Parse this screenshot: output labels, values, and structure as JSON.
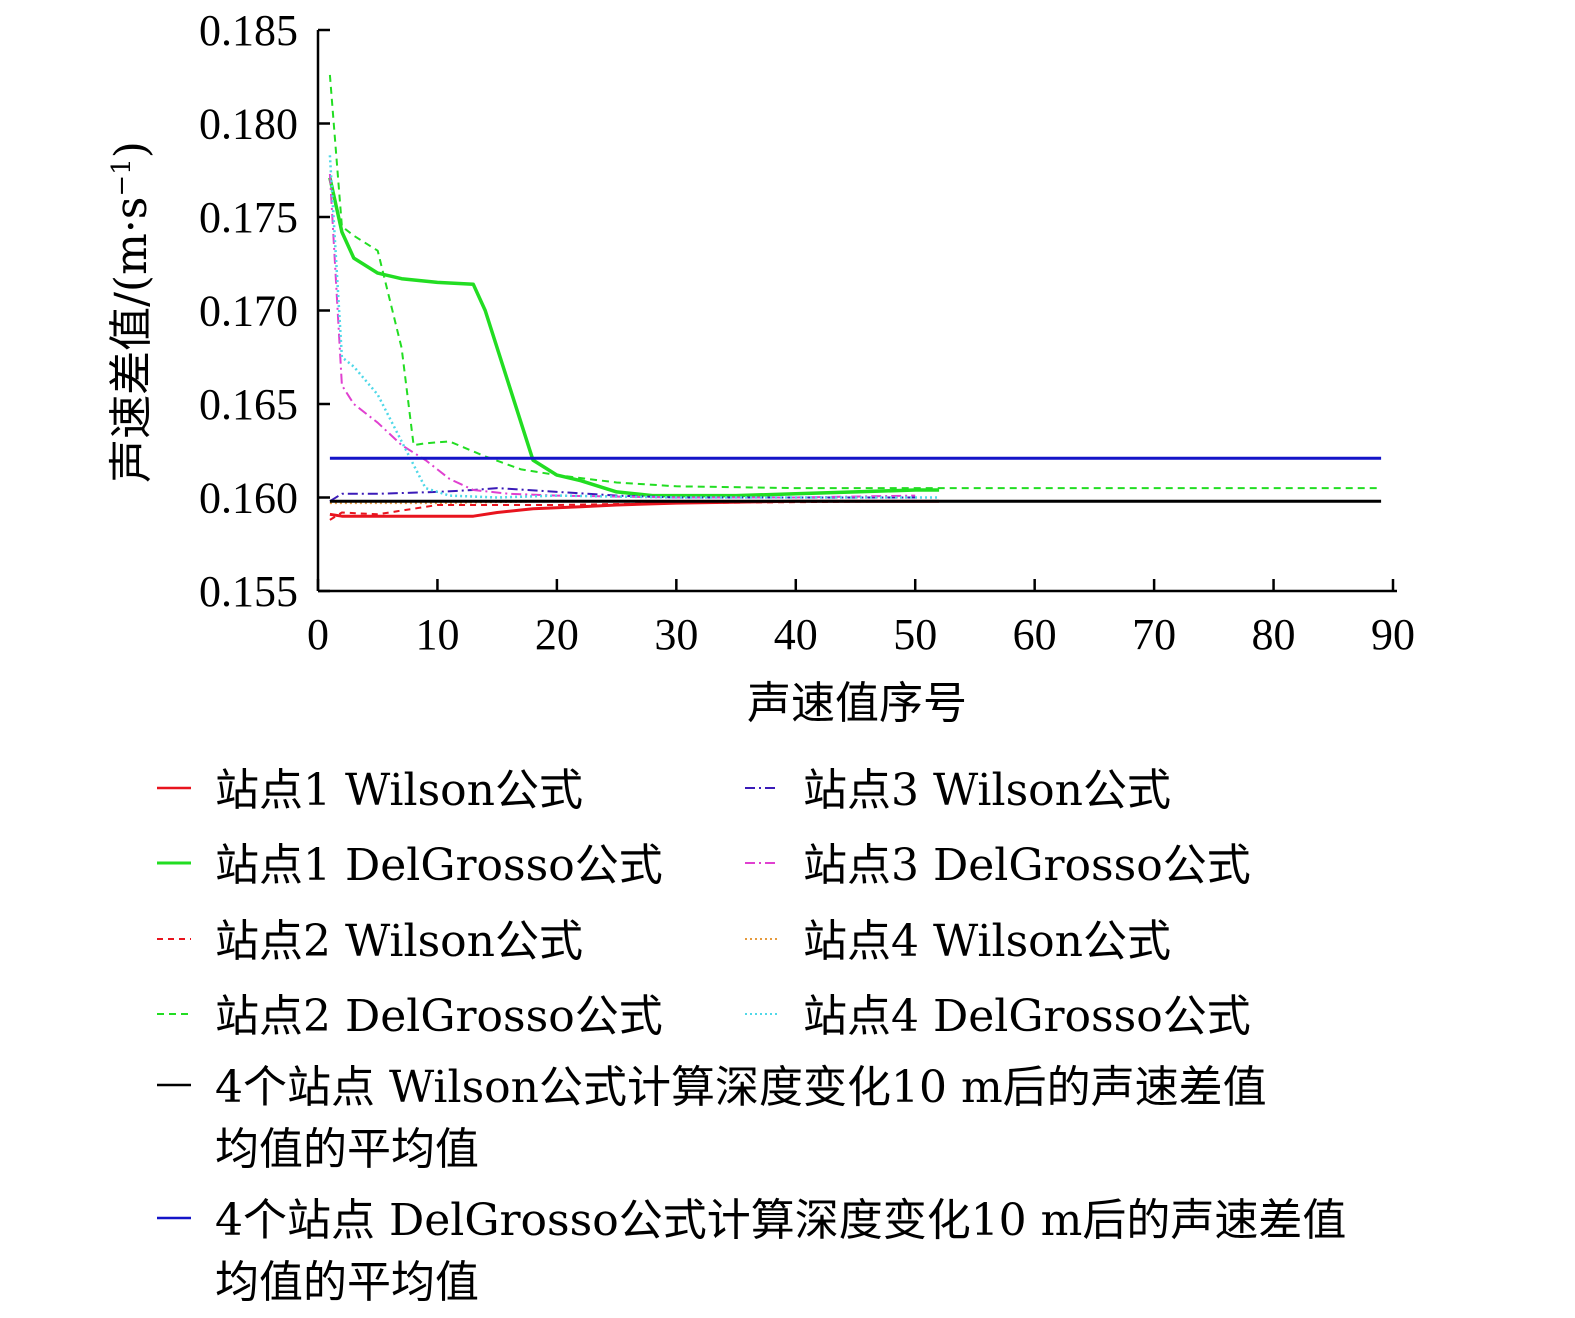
{
  "chart_data": {
    "type": "line",
    "title": "",
    "xlabel": "声速值序号",
    "ylabel": "声速差值/(m·s",
    "ylabel_sup": "−1",
    "ylabel_close": ")",
    "xlim": [
      0,
      90
    ],
    "ylim": [
      0.155,
      0.185
    ],
    "x_ticks": [
      0,
      10,
      20,
      30,
      40,
      50,
      60,
      70,
      80,
      90
    ],
    "y_ticks": [
      0.155,
      0.16,
      0.165,
      0.17,
      0.175,
      0.18,
      0.185
    ],
    "x_tick_labels": [
      "0",
      "10",
      "20",
      "30",
      "40",
      "50",
      "60",
      "70",
      "80",
      "90"
    ],
    "y_tick_labels": [
      "0.155",
      "0.160",
      "0.165",
      "0.170",
      "0.175",
      "0.180",
      "0.185"
    ],
    "grid": false,
    "legend_position": "bottom",
    "series": [
      {
        "name": "站点1 Wilson公式",
        "color": "#e8141e",
        "dash": "solid",
        "width": 3,
        "points": [
          [
            1,
            0.1591
          ],
          [
            2,
            0.159
          ],
          [
            5,
            0.159
          ],
          [
            8,
            0.159
          ],
          [
            13,
            0.159
          ],
          [
            15,
            0.1592
          ],
          [
            18,
            0.1594
          ],
          [
            22,
            0.1595
          ],
          [
            25,
            0.1596
          ],
          [
            30,
            0.1597
          ],
          [
            40,
            0.1598
          ],
          [
            52,
            0.1598
          ]
        ]
      },
      {
        "name": "站点1 DelGrosso公式",
        "color": "#22dd22",
        "dash": "solid",
        "width": 3.5,
        "points": [
          [
            1,
            0.1771
          ],
          [
            2,
            0.1742
          ],
          [
            3,
            0.1728
          ],
          [
            5,
            0.172
          ],
          [
            7,
            0.1717
          ],
          [
            10,
            0.1715
          ],
          [
            13,
            0.1714
          ],
          [
            14,
            0.17
          ],
          [
            16,
            0.166
          ],
          [
            18,
            0.162
          ],
          [
            20,
            0.1612
          ],
          [
            22,
            0.1609
          ],
          [
            25,
            0.1603
          ],
          [
            28,
            0.1601
          ],
          [
            30,
            0.1601
          ],
          [
            35,
            0.1601
          ],
          [
            40,
            0.1602
          ],
          [
            45,
            0.1603
          ],
          [
            50,
            0.1604
          ],
          [
            52,
            0.1604
          ]
        ]
      },
      {
        "name": "站点2 Wilson公式",
        "color": "#e8141e",
        "dash": "6,5",
        "width": 2,
        "points": [
          [
            1,
            0.1588
          ],
          [
            2,
            0.1592
          ],
          [
            5,
            0.1591
          ],
          [
            8,
            0.1594
          ],
          [
            10,
            0.1596
          ],
          [
            15,
            0.1596
          ],
          [
            20,
            0.1596
          ],
          [
            30,
            0.1597
          ],
          [
            50,
            0.1598
          ],
          [
            89,
            0.1598
          ]
        ]
      },
      {
        "name": "站点2 DelGrosso公式",
        "color": "#22dd22",
        "dash": "7,5",
        "width": 2,
        "points": [
          [
            1,
            0.1826
          ],
          [
            2,
            0.1745
          ],
          [
            3,
            0.174
          ],
          [
            5,
            0.1732
          ],
          [
            7,
            0.168
          ],
          [
            8,
            0.1628
          ],
          [
            9,
            0.1629
          ],
          [
            11,
            0.163
          ],
          [
            14,
            0.1622
          ],
          [
            17,
            0.1615
          ],
          [
            20,
            0.1612
          ],
          [
            25,
            0.1608
          ],
          [
            30,
            0.1606
          ],
          [
            40,
            0.1605
          ],
          [
            60,
            0.1605
          ],
          [
            89,
            0.1605
          ]
        ]
      },
      {
        "name": "站点3 Wilson公式",
        "color": "#3a1ab8",
        "dash": "10,4,2,4",
        "width": 2,
        "points": [
          [
            1,
            0.1598
          ],
          [
            2,
            0.1602
          ],
          [
            5,
            0.1602
          ],
          [
            10,
            0.1603
          ],
          [
            13,
            0.1604
          ],
          [
            15,
            0.1605
          ],
          [
            20,
            0.1603
          ],
          [
            25,
            0.1601
          ],
          [
            30,
            0.16
          ],
          [
            40,
            0.16
          ],
          [
            50,
            0.16
          ]
        ]
      },
      {
        "name": "站点3 DelGrosso公式",
        "color": "#e040d0",
        "dash": "10,4,2,4",
        "width": 2,
        "points": [
          [
            1,
            0.1773
          ],
          [
            2,
            0.166
          ],
          [
            3,
            0.165
          ],
          [
            5,
            0.164
          ],
          [
            7,
            0.1628
          ],
          [
            9,
            0.162
          ],
          [
            11,
            0.161
          ],
          [
            13,
            0.1604
          ],
          [
            16,
            0.1602
          ],
          [
            20,
            0.1601
          ],
          [
            30,
            0.16
          ],
          [
            40,
            0.16
          ],
          [
            50,
            0.1601
          ]
        ]
      },
      {
        "name": "站点4 Wilson公式",
        "color": "#e69a3c",
        "dash": "2,3",
        "width": 2,
        "points": [
          [
            1,
            0.1597
          ],
          [
            5,
            0.1597
          ],
          [
            10,
            0.1597
          ],
          [
            20,
            0.1598
          ],
          [
            30,
            0.1598
          ],
          [
            40,
            0.1598
          ],
          [
            52,
            0.1598
          ]
        ]
      },
      {
        "name": "站点4 DelGrosso公式",
        "color": "#4fd8e8",
        "dash": "2,3",
        "width": 2.5,
        "points": [
          [
            1,
            0.1783
          ],
          [
            2,
            0.1675
          ],
          [
            3,
            0.167
          ],
          [
            5,
            0.1655
          ],
          [
            7,
            0.163
          ],
          [
            9,
            0.1605
          ],
          [
            11,
            0.1601
          ],
          [
            15,
            0.16
          ],
          [
            20,
            0.1601
          ],
          [
            30,
            0.16
          ],
          [
            40,
            0.16
          ],
          [
            52,
            0.16
          ]
        ]
      },
      {
        "name": "4个站点 Wilson公式计算深度变化10 m后的声速差值均值的平均值",
        "color": "#000000",
        "dash": "solid",
        "width": 3,
        "points": [
          [
            1,
            0.1598
          ],
          [
            89,
            0.1598
          ]
        ]
      },
      {
        "name": "4个站点 DelGrosso公式计算深度变化10 m后的声速差值均值的平均值",
        "color": "#1414c8",
        "dash": "solid",
        "width": 3,
        "points": [
          [
            1,
            0.1621
          ],
          [
            89,
            0.1621
          ]
        ]
      }
    ]
  },
  "legend": {
    "items": [
      {
        "lines": [
          "站点1 Wilson公式"
        ]
      },
      {
        "lines": [
          "站点3 Wilson公式"
        ]
      },
      {
        "lines": [
          "站点1 DelGrosso公式"
        ]
      },
      {
        "lines": [
          "站点3 DelGrosso公式"
        ]
      },
      {
        "lines": [
          "站点2 Wilson公式"
        ]
      },
      {
        "lines": [
          "站点4 Wilson公式"
        ]
      },
      {
        "lines": [
          "站点2 DelGrosso公式"
        ]
      },
      {
        "lines": [
          "站点4 DelGrosso公式"
        ]
      },
      {
        "lines": [
          "4个站点 Wilson公式计算深度变化10 m后的声速差值",
          "均值的平均值"
        ]
      },
      {
        "lines": [
          "4个站点 DelGrosso公式计算深度变化10 m后的声速差值",
          "均值的平均值"
        ]
      }
    ]
  }
}
